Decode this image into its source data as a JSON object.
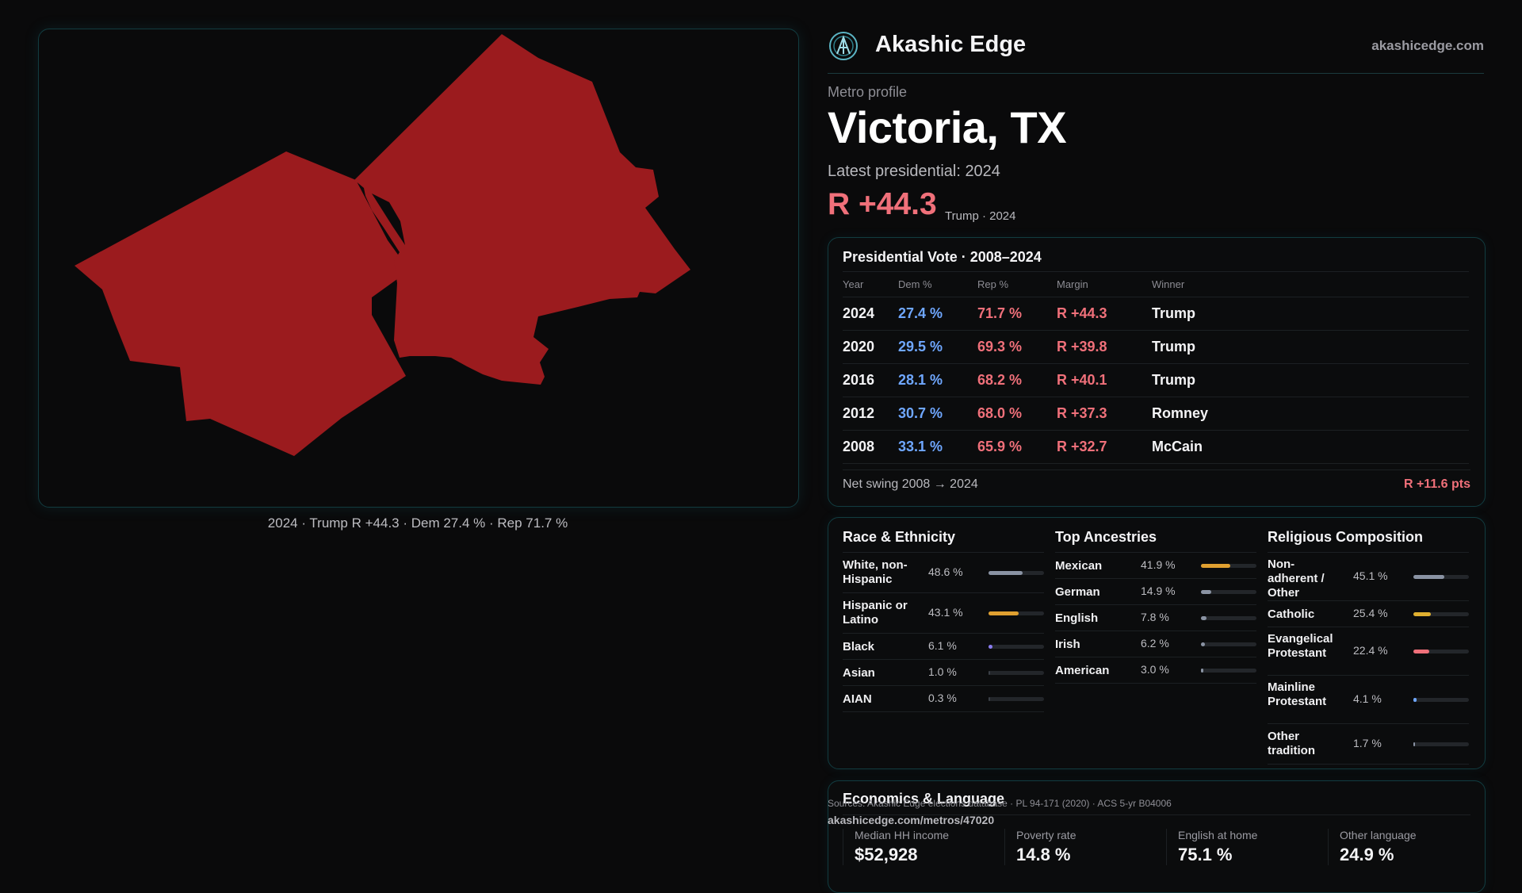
{
  "header": {
    "brand": "Akashic Edge",
    "domain": "akashicedge.com",
    "logo_icon": "constellation-logo-icon"
  },
  "profile": {
    "kicker": "Metro profile",
    "title": "Victoria, TX",
    "latest": "Latest presidential: 2024",
    "margin": "R +44.3",
    "winner_note": "Trump · 2024"
  },
  "map": {
    "caption": "2024 · Trump R +44.3 · Dem 27.4 % · Rep 71.7 %",
    "fill_color": "#9b1b1e"
  },
  "vote": {
    "title": "Presidential Vote · 2008–2024",
    "headers": [
      "Year",
      "Dem %",
      "Rep %",
      "Margin",
      "Winner"
    ],
    "rows": [
      [
        "2024",
        "27.4 %",
        "71.7 %",
        "R +44.3",
        "Trump"
      ],
      [
        "2020",
        "29.5 %",
        "69.3 %",
        "R +39.8",
        "Trump"
      ],
      [
        "2016",
        "28.1 %",
        "68.2 %",
        "R +40.1",
        "Trump"
      ],
      [
        "2012",
        "30.7 %",
        "68.0 %",
        "R +37.3",
        "Romney"
      ],
      [
        "2008",
        "33.1 %",
        "65.9 %",
        "R +32.7",
        "McCain"
      ]
    ],
    "swing_label": "Net swing 2008 → 2024",
    "swing_value": "R +11.6 pts"
  },
  "race": {
    "title": "Race & Ethnicity",
    "items": [
      {
        "label": "White, non-Hispanic",
        "pct": "48.6 %",
        "value": 48.6,
        "color": "#8a93a3"
      },
      {
        "label": "Hispanic or Latino",
        "pct": "43.1 %",
        "value": 43.1,
        "color": "#e0a030"
      },
      {
        "label": "Black",
        "pct": "6.1 %",
        "value": 6.1,
        "color": "#8a7cf0"
      },
      {
        "label": "Asian",
        "pct": "1.0 %",
        "value": 1.0,
        "color": "#3a3f46"
      },
      {
        "label": "AIAN",
        "pct": "0.3 %",
        "value": 0.3,
        "color": "#3a3f46"
      }
    ]
  },
  "ancestry": {
    "title": "Top Ancestries",
    "items": [
      {
        "label": "Mexican",
        "pct": "41.9 %",
        "value": 41.9,
        "color": "#e0a030"
      },
      {
        "label": "German",
        "pct": "14.9 %",
        "value": 14.9,
        "color": "#8a93a3"
      },
      {
        "label": "English",
        "pct": "7.8 %",
        "value": 7.8,
        "color": "#8a93a3"
      },
      {
        "label": "Irish",
        "pct": "6.2 %",
        "value": 6.2,
        "color": "#8a93a3"
      },
      {
        "label": "American",
        "pct": "3.0 %",
        "value": 3.0,
        "color": "#8a93a3"
      }
    ]
  },
  "religion": {
    "title": "Religious Composition",
    "items": [
      {
        "label": "Non-adherent / Other",
        "pct": "45.1 %",
        "value": 45.1,
        "color": "#8a93a3"
      },
      {
        "label": "Catholic",
        "pct": "25.4 %",
        "value": 25.4,
        "color": "#e0b030"
      },
      {
        "label": "Evangelical Protestant",
        "pct": "22.4 %",
        "value": 22.4,
        "color": "#f0707a"
      },
      {
        "label": "Mainline Protestant",
        "pct": "4.1 %",
        "value": 4.1,
        "color": "#6fa7ff"
      },
      {
        "label": "Other tradition",
        "pct": "1.7 %",
        "value": 1.7,
        "color": "#8a93a3"
      }
    ]
  },
  "economics": {
    "title": "Economics & Language",
    "stats": [
      {
        "label": "Median HH income",
        "value": "$52,928"
      },
      {
        "label": "Poverty rate",
        "value": "14.8 %"
      },
      {
        "label": "English at home",
        "value": "75.1 %"
      },
      {
        "label": "Other language",
        "value": "24.9 %"
      }
    ]
  },
  "footer": {
    "sources": "Sources: Akashic Edge elections database · PL 94-171 (2020) · ACS 5-yr B04006",
    "url": "akashicedge.com/metros/47020"
  }
}
